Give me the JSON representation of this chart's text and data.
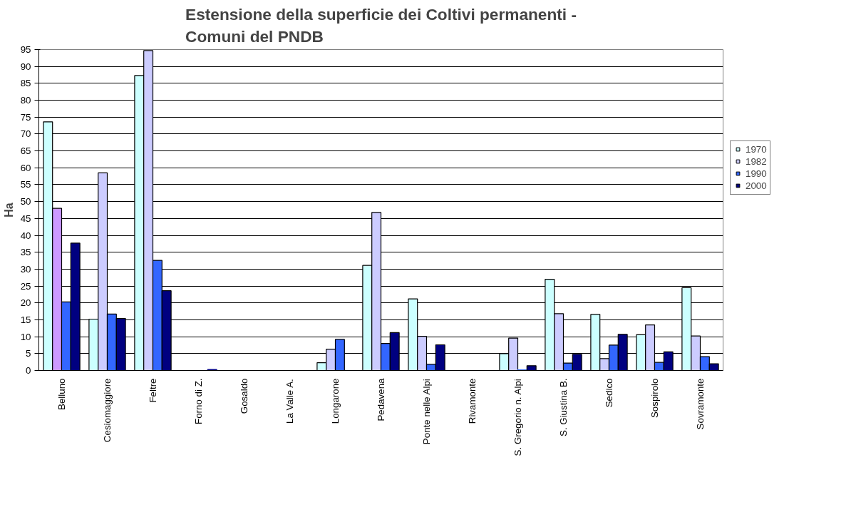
{
  "chart_data": {
    "type": "bar",
    "title": "Estensione della superficie dei Coltivi permanenti -\nComuni del PNDB",
    "ylabel": "Ha",
    "categories": [
      "Belluno",
      "Cesiomaggiore",
      "Feltre",
      "Forno di Z.",
      "Gosaldo",
      "La Valle A.",
      "Longarone",
      "Pedavena",
      "Ponte nelle Alpi",
      "Rivamonte",
      "S. Gregorio n. Alpi",
      "S. Giustina B.",
      "Sedico",
      "Sospirolo",
      "Sovramonte"
    ],
    "series": [
      {
        "name": "1970",
        "color": "#ccffff",
        "values": [
          73.6,
          15.2,
          87.3,
          0.1,
          0,
          0,
          2.3,
          31.1,
          21.2,
          0,
          5.0,
          27.0,
          16.6,
          10.6,
          24.5
        ]
      },
      {
        "name": "1982",
        "color": "#ccccff",
        "colors": [
          "#cc99ff",
          "#ccccff",
          "#ccccff",
          "#ccccff",
          "#ccccff",
          "#ccccff",
          "#ccccff",
          "#ccccff",
          "#ccccff",
          "#ccccff",
          "#ccccff",
          "#ccccff",
          "#ccccff",
          "#ccccff",
          "#ccccff"
        ],
        "values": [
          48.0,
          58.5,
          94.7,
          0,
          0,
          0,
          6.3,
          46.8,
          10.1,
          0,
          9.6,
          16.8,
          3.5,
          13.5,
          10.2
        ]
      },
      {
        "name": "1990",
        "color": "#3366ff",
        "values": [
          20.3,
          16.7,
          32.6,
          0,
          0,
          0,
          9.2,
          8.0,
          1.8,
          0,
          0.2,
          2.2,
          7.5,
          2.4,
          4.1
        ]
      },
      {
        "name": "2000",
        "color": "#000080",
        "values": [
          37.7,
          15.4,
          23.6,
          0.3,
          0,
          0,
          0,
          11.2,
          7.6,
          0,
          1.4,
          4.8,
          10.7,
          5.5,
          2.0
        ]
      }
    ],
    "ylim": [
      0,
      95
    ],
    "yticks": [
      0,
      5,
      10,
      15,
      20,
      25,
      30,
      35,
      40,
      45,
      50,
      55,
      60,
      65,
      70,
      75,
      80,
      85,
      90,
      95
    ],
    "grid": "y",
    "legend": "right"
  }
}
